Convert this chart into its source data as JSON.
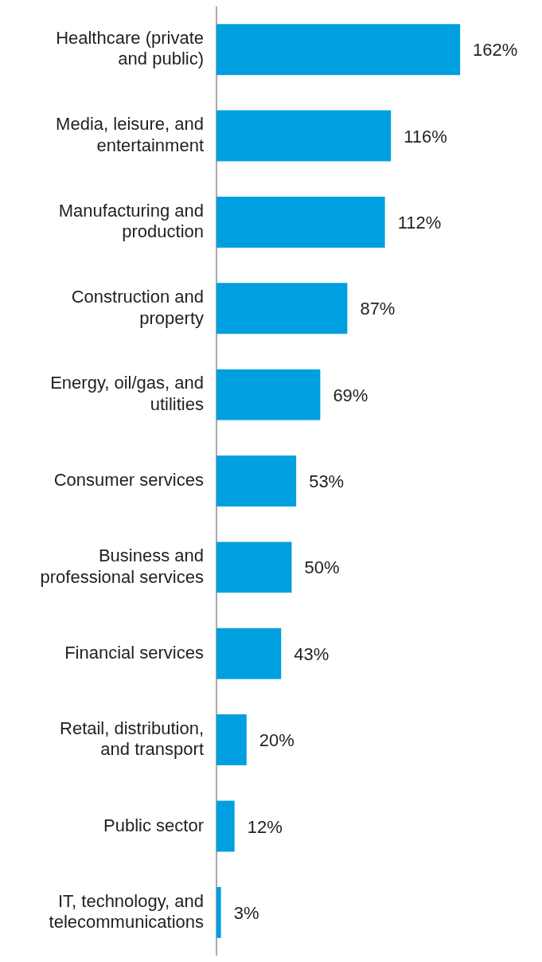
{
  "chart_data": {
    "type": "bar",
    "orientation": "horizontal",
    "categories": [
      "Healthcare (private and public)",
      "Media, leisure, and entertainment",
      "Manufacturing and production",
      "Construction and property",
      "Energy, oil/gas, and utilities",
      "Consumer services",
      "Business and professional services",
      "Financial services",
      "Retail, distribution, and transport",
      "Public sector",
      "IT, technology, and telecommunications"
    ],
    "values": [
      162,
      116,
      112,
      87,
      69,
      53,
      50,
      43,
      20,
      12,
      3
    ],
    "value_labels": [
      "162%",
      "116%",
      "112%",
      "87%",
      "69%",
      "53%",
      "50%",
      "43%",
      "20%",
      "12%",
      "3%"
    ],
    "color": "#009fdf",
    "tick_labels": "y"
  }
}
